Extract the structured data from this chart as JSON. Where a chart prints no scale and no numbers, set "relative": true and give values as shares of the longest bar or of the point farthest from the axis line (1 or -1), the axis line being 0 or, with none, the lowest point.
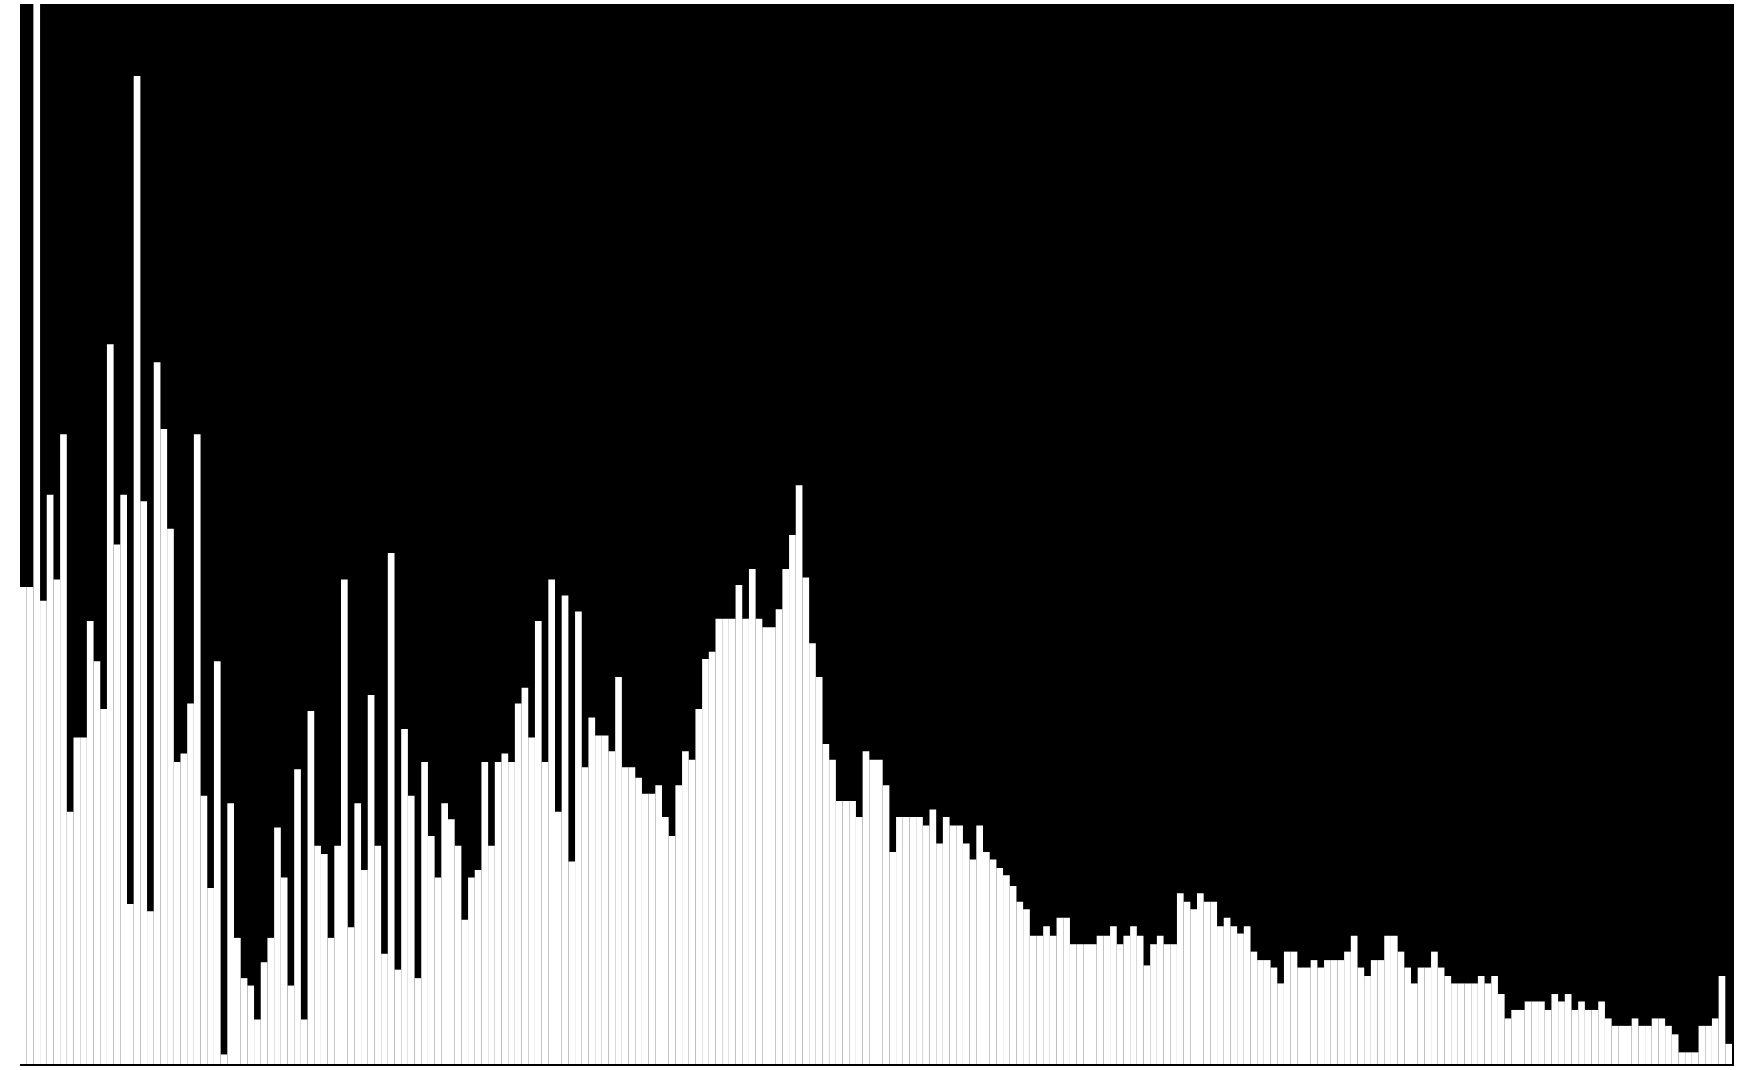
{
  "chart_data": {
    "type": "bar",
    "relative": true,
    "color": "#ffffff",
    "categories": [
      null,
      null,
      null,
      null,
      null,
      null,
      null,
      null,
      null,
      null,
      null,
      null,
      null,
      null,
      null,
      null,
      null,
      null,
      null,
      null,
      null,
      null,
      null,
      null,
      null,
      null,
      null,
      null,
      null,
      null,
      null,
      null,
      null,
      null,
      null,
      null,
      null,
      null,
      null,
      null,
      null,
      null,
      null,
      null,
      null,
      null,
      null,
      null,
      null,
      null,
      null,
      null,
      null,
      null,
      null,
      null,
      null,
      null,
      null,
      null,
      null,
      null,
      null,
      null,
      null,
      null,
      null,
      null,
      null,
      null,
      null,
      null,
      null,
      null,
      null,
      null,
      null,
      null,
      null,
      null,
      null,
      null,
      null,
      null,
      null,
      null,
      null,
      null,
      null,
      null,
      null,
      null,
      null,
      null,
      null,
      null,
      null,
      null,
      null,
      null,
      null,
      null,
      null,
      null,
      null,
      null,
      null,
      null,
      null,
      null,
      null,
      null,
      null,
      null,
      null,
      null,
      null,
      null,
      null,
      null,
      null,
      null,
      null,
      null,
      null,
      null,
      null,
      null,
      null,
      null,
      null,
      null,
      null,
      null,
      null,
      null,
      null,
      null,
      null,
      null,
      null,
      null,
      null,
      null,
      null,
      null,
      null,
      null,
      null,
      null,
      null,
      null,
      null,
      null,
      null,
      null,
      null,
      null,
      null,
      null,
      null,
      null,
      null,
      null,
      null,
      null,
      null,
      null,
      null,
      null,
      null,
      null,
      null,
      null,
      null,
      null,
      null,
      null,
      null,
      null,
      null,
      null,
      null,
      null,
      null,
      null,
      null,
      null,
      null,
      null,
      null,
      null,
      null,
      null,
      null,
      null,
      null,
      null,
      null,
      null,
      null,
      null,
      null,
      null,
      null,
      null,
      null,
      null,
      null,
      null,
      null,
      null,
      null,
      null,
      null,
      null,
      null,
      null,
      null,
      null,
      null,
      null,
      null,
      null,
      null,
      null,
      null,
      null,
      null,
      null,
      null,
      null,
      null,
      null,
      null,
      null,
      null,
      null,
      null,
      null,
      null,
      null,
      null,
      null,
      null,
      null,
      null,
      null,
      null,
      null,
      null,
      null,
      null,
      null,
      null,
      null
    ],
    "values": [
      0.45,
      0.45,
      1,
      0.437,
      0.537,
      0.457,
      0.594,
      0.238,
      0.308,
      0.308,
      0.418,
      0.38,
      0.335,
      0.679,
      0.49,
      0.537,
      0.151,
      0.932,
      0.531,
      0.144,
      0.662,
      0.599,
      0.505,
      0.285,
      0.293,
      0.34,
      0.594,
      0.253,
      0.166,
      0.38,
      0.009,
      0.246,
      0.119,
      0.081,
      0.074,
      0.042,
      0.096,
      0.119,
      0.223,
      0.176,
      0.074,
      0.278,
      0.042,
      0.333,
      0.206,
      0.198,
      0.119,
      0.206,
      0.457,
      0.129,
      0.246,
      0.183,
      0.348,
      0.206,
      0.104,
      0.482,
      0.089,
      0.316,
      0.253,
      0.081,
      0.285,
      0.215,
      0.176,
      0.246,
      0.231,
      0.206,
      0.136,
      0.176,
      0.183,
      0.285,
      0.206,
      0.285,
      0.293,
      0.285,
      0.34,
      0.355,
      0.308,
      0.418,
      0.285,
      0.457,
      0.238,
      0.442,
      0.191,
      0.427,
      0.28,
      0.327,
      0.31,
      0.31,
      0.295,
      0.365,
      0.28,
      0.28,
      0.27,
      0.255,
      0.255,
      0.263,
      0.233,
      0.215,
      0.263,
      0.295,
      0.287,
      0.335,
      0.382,
      0.389,
      0.42,
      0.42,
      0.42,
      0.452,
      0.42,
      0.467,
      0.42,
      0.412,
      0.412,
      0.429,
      0.467,
      0.499,
      0.546,
      0.459,
      0.397,
      0.365,
      0.302,
      0.287,
      0.248,
      0.248,
      0.248,
      0.233,
      0.295,
      0.287,
      0.287,
      0.263,
      0.2,
      0.233,
      0.233,
      0.233,
      0.233,
      0.225,
      0.24,
      0.208,
      0.233,
      0.225,
      0.225,
      0.208,
      0.193,
      0.225,
      0.2,
      0.193,
      0.185,
      0.178,
      0.168,
      0.153,
      0.146,
      0.121,
      0.121,
      0.13,
      0.121,
      0.138,
      0.138,
      0.113,
      0.113,
      0.113,
      0.113,
      0.121,
      0.121,
      0.13,
      0.113,
      0.121,
      0.13,
      0.121,
      0.093,
      0.113,
      0.121,
      0.113,
      0.113,
      0.161,
      0.153,
      0.146,
      0.161,
      0.153,
      0.153,
      0.13,
      0.138,
      0.13,
      0.123,
      0.13,
      0.106,
      0.098,
      0.098,
      0.091,
      0.076,
      0.106,
      0.106,
      0.091,
      0.091,
      0.098,
      0.091,
      0.098,
      0.098,
      0.098,
      0.106,
      0.121,
      0.091,
      0.083,
      0.098,
      0.098,
      0.121,
      0.121,
      0.106,
      0.091,
      0.076,
      0.091,
      0.091,
      0.106,
      0.091,
      0.083,
      0.076,
      0.076,
      0.076,
      0.076,
      0.083,
      0.076,
      0.083,
      0.066,
      0.043,
      0.051,
      0.051,
      0.059,
      0.059,
      0.059,
      0.051,
      0.066,
      0.059,
      0.066,
      0.051,
      0.059,
      0.051,
      0.051,
      0.059,
      0.043,
      0.036,
      0.036,
      0.036,
      0.043,
      0.036,
      0.036,
      0.043,
      0.043,
      0.036,
      0.028,
      0.011,
      0.011,
      0.011,
      0.036,
      0.036,
      0.043,
      0.083,
      0.019
    ]
  }
}
